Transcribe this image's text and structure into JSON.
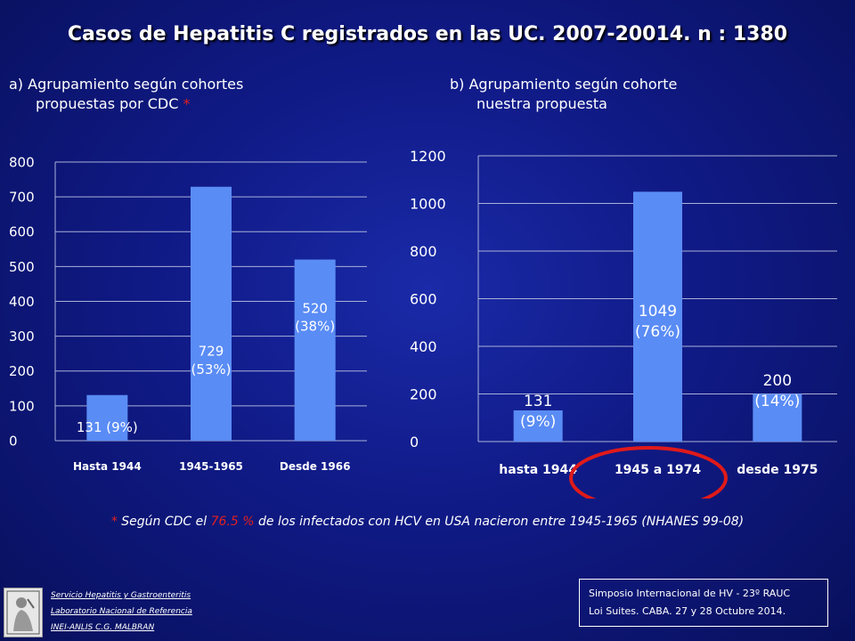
{
  "title": "Casos de Hepatitis C  registrados en las UC. 2007-20014.  n : 1380",
  "subtitle_a": {
    "line1": "a) Agrupamiento según cohortes",
    "line2": "propuestas por CDC",
    "star": "*"
  },
  "subtitle_b": {
    "line1": "b) Agrupamiento según cohorte",
    "line2": "nuestra propuesta"
  },
  "chart_data": [
    {
      "type": "bar",
      "categories": [
        "Hasta 1944",
        "1945-1965",
        "Desde 1966"
      ],
      "values": [
        131,
        729,
        520
      ],
      "data_labels": [
        [
          "131 (9%)"
        ],
        [
          "729",
          "(53%)"
        ],
        [
          "520",
          "(38%)"
        ]
      ],
      "ylim": [
        0,
        800
      ],
      "yticks": [
        0,
        100,
        200,
        300,
        400,
        500,
        600,
        700,
        800
      ],
      "grid": true,
      "bar_color": "#5a8cf5"
    },
    {
      "type": "bar",
      "categories": [
        "hasta 1944",
        "1945    a 1974",
        "desde 1975"
      ],
      "values": [
        131,
        1049,
        200
      ],
      "data_labels": [
        [
          "131",
          "(9%)"
        ],
        [
          "1049",
          "(76%)"
        ],
        [
          "200",
          "(14%)"
        ]
      ],
      "ylim": [
        0,
        1200
      ],
      "yticks": [
        0,
        200,
        400,
        600,
        800,
        1000,
        1200
      ],
      "grid": true,
      "bar_color": "#5a8cf5",
      "highlight_color": "#e01a1a"
    }
  ],
  "footnote": {
    "star": "*",
    "part1": "Según  CDC  el",
    "pct": "76.5 %",
    "part2": "de los infectados con HCV en USA nacieron entre 1945-1965  (NHANES 99-08)"
  },
  "credits": [
    "Servicio Hepatitis y Gastroenteritis",
    "Laboratorio Nacional de Referencia",
    "INEI-ANLIS C.G. MALBRAN"
  ],
  "event": [
    "Simposio Internacional de HV - 23º RAUC",
    "Loi Suites. CABA.  27 y 28  Octubre 2014."
  ],
  "colors": {
    "background": "#101a86",
    "accent_red": "#e02020",
    "bar": "#5a8cf5"
  }
}
